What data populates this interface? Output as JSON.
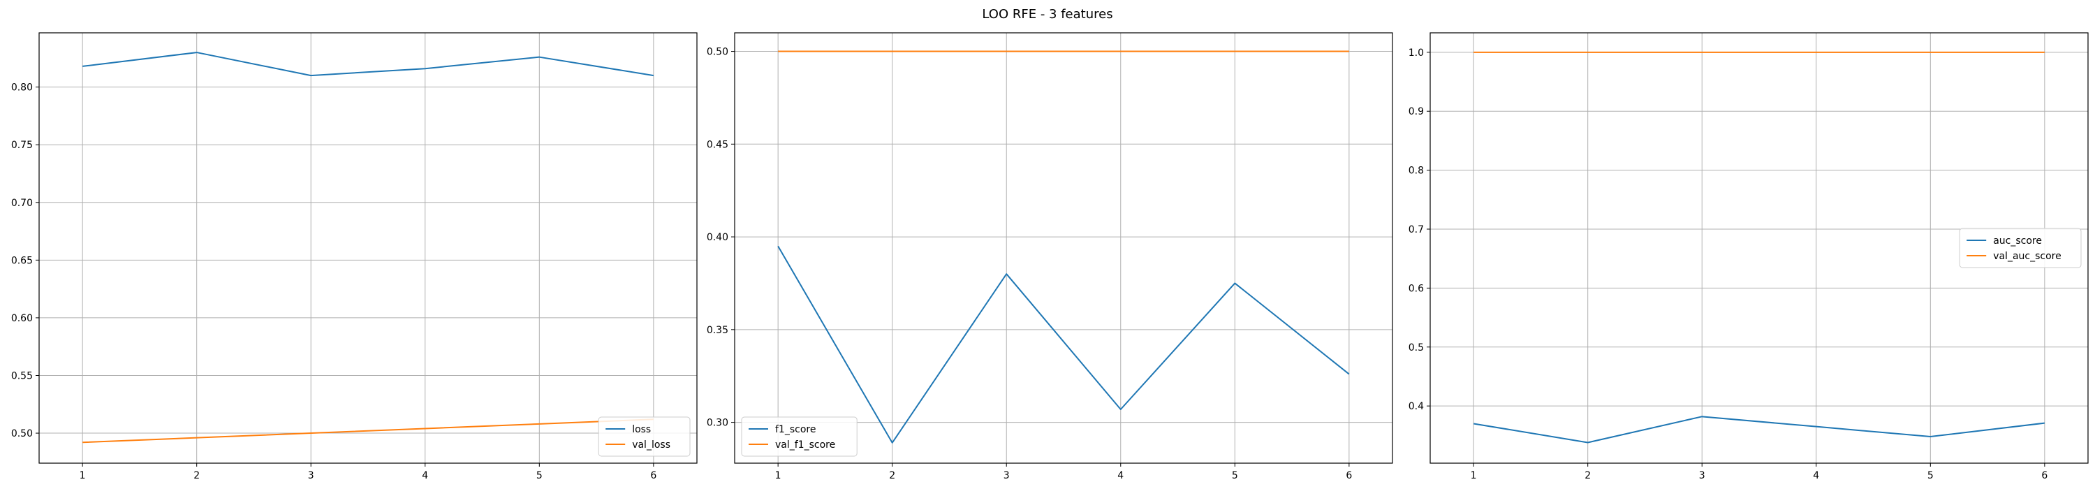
{
  "title": "LOO RFE - 3 features",
  "chart_data": [
    {
      "type": "line",
      "x": [
        1,
        2,
        3,
        4,
        5,
        6
      ],
      "series": [
        {
          "name": "loss",
          "color": "#1f77b4",
          "values": [
            0.818,
            0.83,
            0.81,
            0.816,
            0.826,
            0.81
          ]
        },
        {
          "name": "val_loss",
          "color": "#ff7f0e",
          "values": [
            0.492,
            0.496,
            0.5,
            0.504,
            0.508,
            0.512
          ]
        }
      ],
      "xlim": [
        0.62,
        6.38
      ],
      "ylim": [
        0.474,
        0.847
      ],
      "yticks": [
        0.5,
        0.55,
        0.6,
        0.65,
        0.7,
        0.75,
        0.8
      ],
      "ytick_labels": [
        "0.50",
        "0.55",
        "0.60",
        "0.65",
        "0.70",
        "0.75",
        "0.80"
      ],
      "xticks": [
        1,
        2,
        3,
        4,
        5,
        6
      ],
      "xtick_labels": [
        "1",
        "2",
        "3",
        "4",
        "5",
        "6"
      ],
      "grid": true,
      "legend_position": "lower-right"
    },
    {
      "type": "line",
      "x": [
        1,
        2,
        3,
        4,
        5,
        6
      ],
      "series": [
        {
          "name": "f1_score",
          "color": "#1f77b4",
          "values": [
            0.395,
            0.289,
            0.38,
            0.307,
            0.375,
            0.326
          ]
        },
        {
          "name": "val_f1_score",
          "color": "#ff7f0e",
          "values": [
            0.5,
            0.5,
            0.5,
            0.5,
            0.5,
            0.5
          ]
        }
      ],
      "xlim": [
        0.62,
        6.38
      ],
      "ylim": [
        0.278,
        0.51
      ],
      "yticks": [
        0.3,
        0.35,
        0.4,
        0.45,
        0.5
      ],
      "ytick_labels": [
        "0.30",
        "0.35",
        "0.40",
        "0.45",
        "0.50"
      ],
      "xticks": [
        1,
        2,
        3,
        4,
        5,
        6
      ],
      "xtick_labels": [
        "1",
        "2",
        "3",
        "4",
        "5",
        "6"
      ],
      "grid": true,
      "legend_position": "lower-left"
    },
    {
      "type": "line",
      "x": [
        1,
        2,
        3,
        4,
        5,
        6
      ],
      "series": [
        {
          "name": "auc_score",
          "color": "#1f77b4",
          "values": [
            0.37,
            0.338,
            0.382,
            0.365,
            0.348,
            0.371
          ]
        },
        {
          "name": "val_auc_score",
          "color": "#ff7f0e",
          "values": [
            1.0,
            1.0,
            1.0,
            1.0,
            1.0,
            1.0
          ]
        }
      ],
      "xlim": [
        0.62,
        6.38
      ],
      "ylim": [
        0.303,
        1.033
      ],
      "yticks": [
        0.4,
        0.5,
        0.6,
        0.7,
        0.8,
        0.9,
        1.0
      ],
      "ytick_labels": [
        "0.4",
        "0.5",
        "0.6",
        "0.7",
        "0.8",
        "0.9",
        "1.0"
      ],
      "xticks": [
        1,
        2,
        3,
        4,
        5,
        6
      ],
      "xtick_labels": [
        "1",
        "2",
        "3",
        "4",
        "5",
        "6"
      ],
      "grid": true,
      "legend_position": "center-right"
    }
  ]
}
